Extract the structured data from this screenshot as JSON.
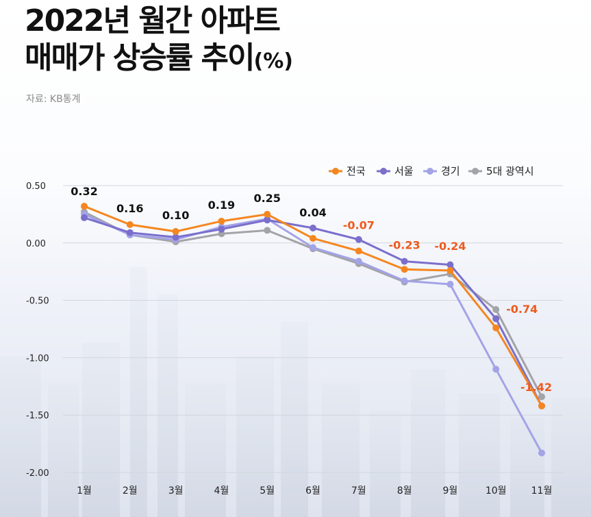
{
  "header": {
    "title_line1": "2022년 월간 아파트",
    "title_line2": "매매가 상승률 추이",
    "title_unit": "(%)",
    "source": "자료: KB통계"
  },
  "chart_data": {
    "type": "line",
    "title": "2022년 월간 아파트 매매가 상승률 추이(%)",
    "categories": [
      "1월",
      "2월",
      "3월",
      "4월",
      "5월",
      "6월",
      "7월",
      "8월",
      "9월",
      "10월",
      "11월"
    ],
    "y_ticks": [
      "0.50",
      "0.00",
      "-0.50",
      "-1.00",
      "-1.50",
      "-2.00"
    ],
    "y_tick_values": [
      0.5,
      0.0,
      -0.5,
      -1.0,
      -1.5,
      -2.0
    ],
    "ylim": [
      -2.0,
      0.5
    ],
    "legend_position": "top-right",
    "series": [
      {
        "name": "5대 광역시",
        "color": "#a3a3a8",
        "values": [
          0.27,
          0.07,
          0.01,
          0.08,
          0.11,
          -0.05,
          -0.18,
          -0.34,
          -0.27,
          -0.58,
          -1.34
        ]
      },
      {
        "name": "경기",
        "color": "#a3a3e6",
        "values": [
          0.25,
          0.07,
          0.03,
          0.14,
          0.21,
          -0.04,
          -0.16,
          -0.33,
          -0.36,
          -1.1,
          -1.83
        ]
      },
      {
        "name": "서울",
        "color": "#7a6fcb",
        "values": [
          0.22,
          0.09,
          0.05,
          0.12,
          0.2,
          0.13,
          0.03,
          -0.16,
          -0.19,
          -0.66,
          -1.42
        ]
      },
      {
        "name": "전국",
        "color": "#f5861f",
        "values": [
          0.32,
          0.16,
          0.1,
          0.19,
          0.25,
          0.04,
          -0.07,
          -0.23,
          -0.24,
          -0.74,
          -1.42
        ]
      }
    ],
    "legend_order": [
      "전국",
      "서울",
      "경기",
      "5대 광역시"
    ],
    "data_labels": [
      "0.32",
      "0.16",
      "0.10",
      "0.19",
      "0.25",
      "0.04",
      "-0.07",
      "-0.23",
      "-0.24",
      "-0.74",
      "-1.42"
    ],
    "label_colors": {
      "positive": "#111111",
      "negative": "#ee5a1e"
    }
  }
}
